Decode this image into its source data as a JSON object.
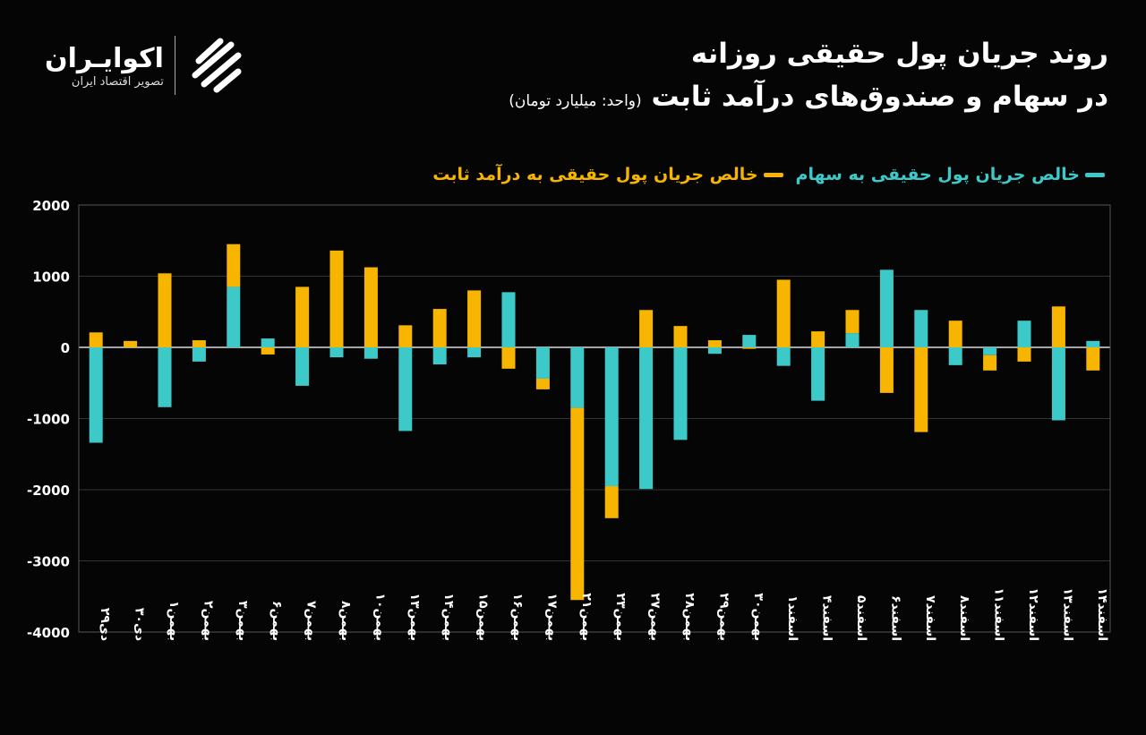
{
  "title": {
    "line1": "روند جریان پول حقیقی روزانه",
    "line2": "در سهام و صندوق‌های درآمد ثابت",
    "unit": "(واحد: میلیارد تومان)"
  },
  "logo": {
    "name": "اکوایـران",
    "subtitle": "تصویر اقتصاد ایران"
  },
  "colors": {
    "stocks": "#3ec9c9",
    "fixed_income": "#f7b500",
    "background": "#050505"
  },
  "chart_data": {
    "type": "bar",
    "stacked": true,
    "title": "روند جریان پول حقیقی روزانه در سهام و صندوق‌های درآمد ثابت",
    "ylabel": "",
    "xlabel": "",
    "ylim": [
      -4000,
      2000
    ],
    "yticks": [
      2000,
      1000,
      0,
      -1000,
      -2000,
      -3000,
      -4000
    ],
    "ytick_labels": [
      "2000",
      "1000",
      "0",
      "-1000",
      "-2000",
      "-3000",
      "-4000"
    ],
    "grid": true,
    "legend_placement": "top-right",
    "categories": [
      "دی۲۹",
      "دی۳۰",
      "بهمن۱",
      "بهمن۲",
      "بهمن۳",
      "بهمن۶",
      "بهمن۷",
      "بهمن۸",
      "بهمن۱۰",
      "بهمن۱۳",
      "بهمن۱۴",
      "بهمن۱۵",
      "بهمن۱۶",
      "بهمن۱۷",
      "بهمن۲۱",
      "بهمن۲۳",
      "بهمن۲۷",
      "بهمن۲۸",
      "بهمن۲۹",
      "بهمن۳۰",
      "اسفند۱",
      "اسفند۴",
      "اسفند۵",
      "اسفند۶",
      "اسفند۷",
      "اسفند۸",
      "اسفند۱۱",
      "اسفند۱۲",
      "اسفند۱۳",
      "اسفند۱۴"
    ],
    "series": [
      {
        "name": "خالص جریان پول حقیقی به سهام",
        "values": [
          -1340,
          0,
          -840,
          -200,
          850,
          125,
          -540,
          -140,
          -160,
          -1175,
          -240,
          -140,
          775,
          -440,
          -850,
          -1950,
          -1990,
          -1300,
          -90,
          175,
          -260,
          -750,
          200,
          1090,
          525,
          -250,
          -110,
          375,
          -1025,
          90
        ]
      },
      {
        "name": "خالص جریان پول حقیقی به درآمد ثابت",
        "values": [
          210,
          90,
          1040,
          100,
          600,
          -100,
          850,
          1360,
          1125,
          310,
          540,
          800,
          -300,
          -150,
          -2700,
          -450,
          525,
          300,
          100,
          -20,
          950,
          225,
          325,
          -640,
          -1190,
          375,
          -215,
          -200,
          575,
          -325
        ]
      }
    ]
  }
}
